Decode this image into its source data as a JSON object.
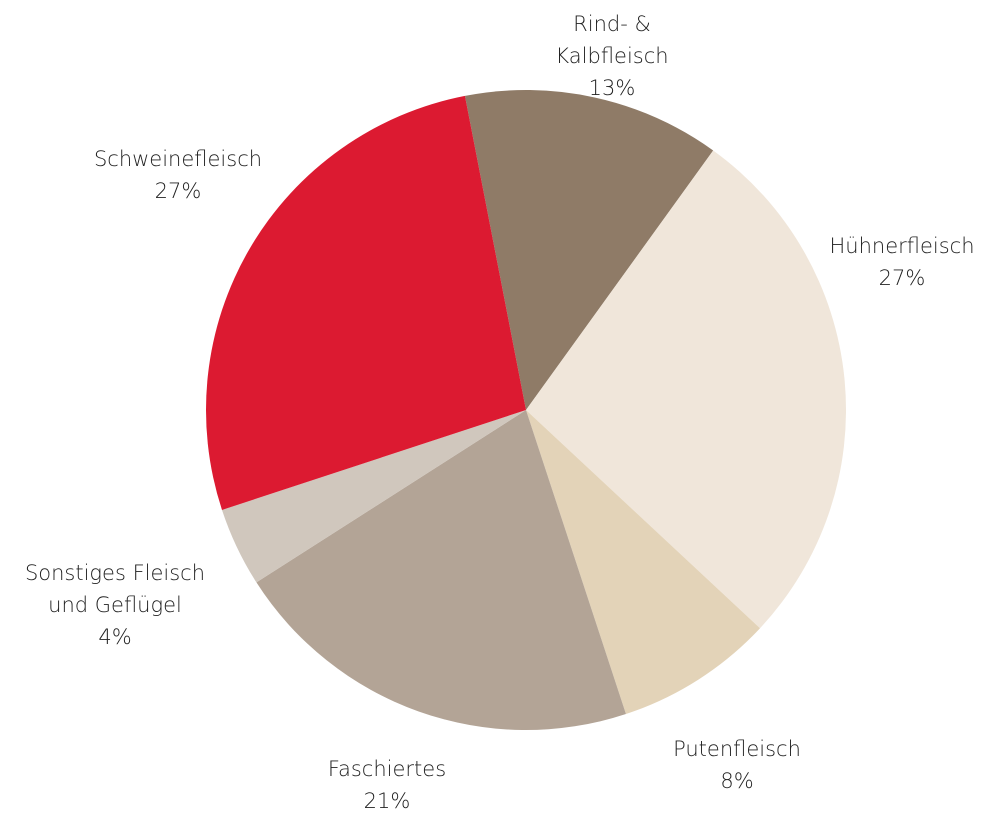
{
  "chart_data": {
    "type": "pie",
    "categories": [
      "Rind- & Kalbfleisch",
      "Hühnerfleisch",
      "Putenfleisch",
      "Faschiertes",
      "Sonstiges Fleisch und Geflügel",
      "Schweinefleisch"
    ],
    "values": [
      13,
      27,
      8,
      21,
      4,
      27
    ],
    "value_labels": [
      "13%",
      "27%",
      "8%",
      "21%",
      "4%",
      "27%"
    ],
    "colors": [
      "#8f7b67",
      "#f0e6da",
      "#e3d3b8",
      "#b3a496",
      "#d0c7bd",
      "#dc1a31"
    ]
  }
}
